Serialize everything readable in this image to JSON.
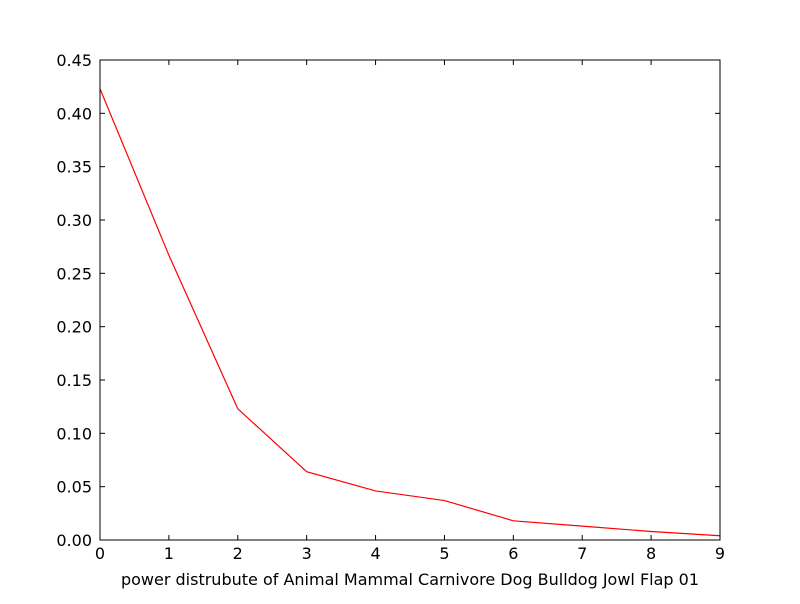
{
  "chart_data": {
    "type": "line",
    "title": "",
    "xlabel": "power distrubute of Animal Mammal Carnivore Dog Bulldog Jowl Flap 01",
    "ylabel": "",
    "x": [
      0,
      1,
      2,
      3,
      4,
      5,
      6,
      7,
      8,
      9
    ],
    "series": [
      {
        "values": [
          0.423,
          0.267,
          0.123,
          0.064,
          0.046,
          0.037,
          0.018,
          0.013,
          0.008,
          0.004
        ],
        "color": "#ff0000"
      }
    ],
    "xlim": [
      0,
      9
    ],
    "ylim": [
      0,
      0.45
    ],
    "xticks": [
      "0",
      "1",
      "2",
      "3",
      "4",
      "5",
      "6",
      "7",
      "8",
      "9"
    ],
    "yticks": [
      "0.00",
      "0.05",
      "0.10",
      "0.15",
      "0.20",
      "0.25",
      "0.30",
      "0.35",
      "0.40",
      "0.45"
    ],
    "grid": false,
    "legend": "none"
  }
}
